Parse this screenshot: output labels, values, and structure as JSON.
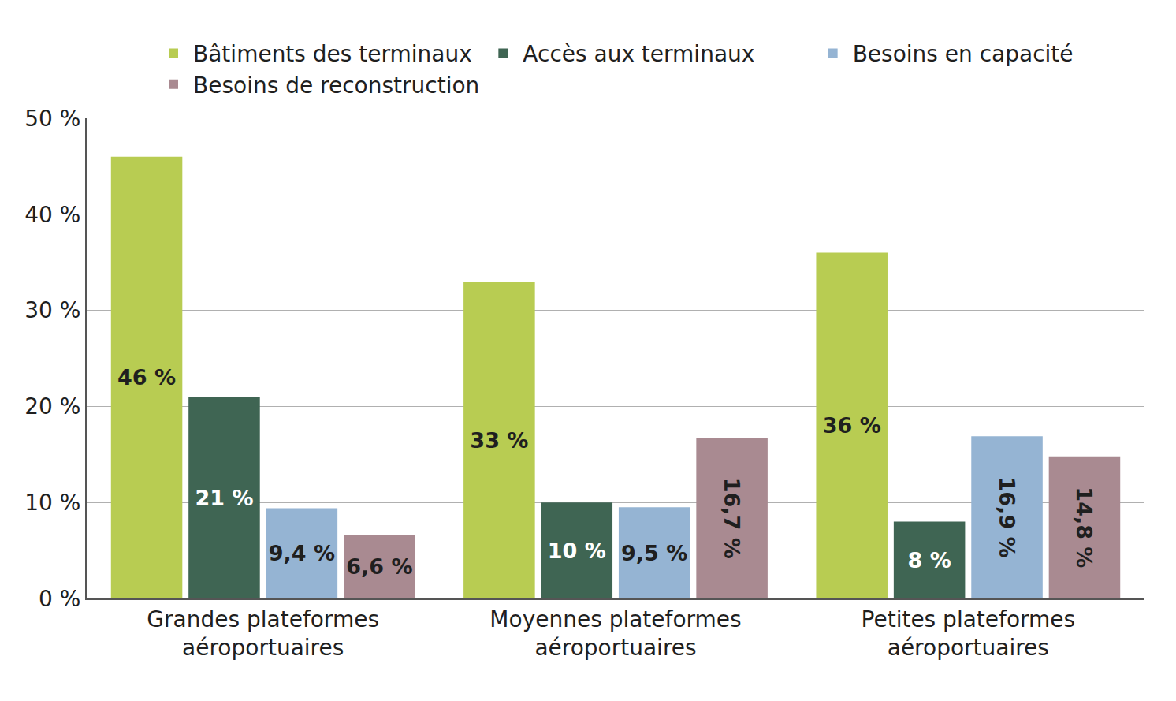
{
  "chart_data": {
    "type": "bar",
    "categories": [
      "Grandes plateformes aéroportuaires",
      "Moyennes plateformes aéroportuaires",
      "Petites plateformes aéroportuaires"
    ],
    "series": [
      {
        "name": "Bâtiments des terminaux",
        "color": "#b8cc52",
        "values": [
          46,
          33,
          36
        ],
        "value_labels": [
          "46 %",
          "33 %",
          "36 %"
        ]
      },
      {
        "name": "Accès aux terminaux",
        "color": "#3f6553",
        "values": [
          21,
          10,
          8
        ],
        "value_labels": [
          "21 %",
          "10 %",
          "8 %"
        ]
      },
      {
        "name": "Besoins en capacité",
        "color": "#95b4d3",
        "values": [
          9.4,
          9.5,
          16.9
        ],
        "value_labels": [
          "9,4 %",
          "9,5 %",
          "16,9 %"
        ]
      },
      {
        "name": "Besoins de reconstruction",
        "color": "#a98a91",
        "values": [
          6.6,
          16.7,
          14.8
        ],
        "value_labels": [
          "6,6 %",
          "16,7 %",
          "14,8 %"
        ]
      }
    ],
    "ylim": [
      0,
      50
    ],
    "yticks": [
      {
        "value": 0,
        "label": "0 %"
      },
      {
        "value": 10,
        "label": "10 %"
      },
      {
        "value": 20,
        "label": "20 %"
      },
      {
        "value": 30,
        "label": "30 %"
      },
      {
        "value": 40,
        "label": "40 %"
      },
      {
        "value": 50,
        "label": "50 %"
      }
    ],
    "grid": true,
    "legend": "top",
    "data_labels": true
  }
}
